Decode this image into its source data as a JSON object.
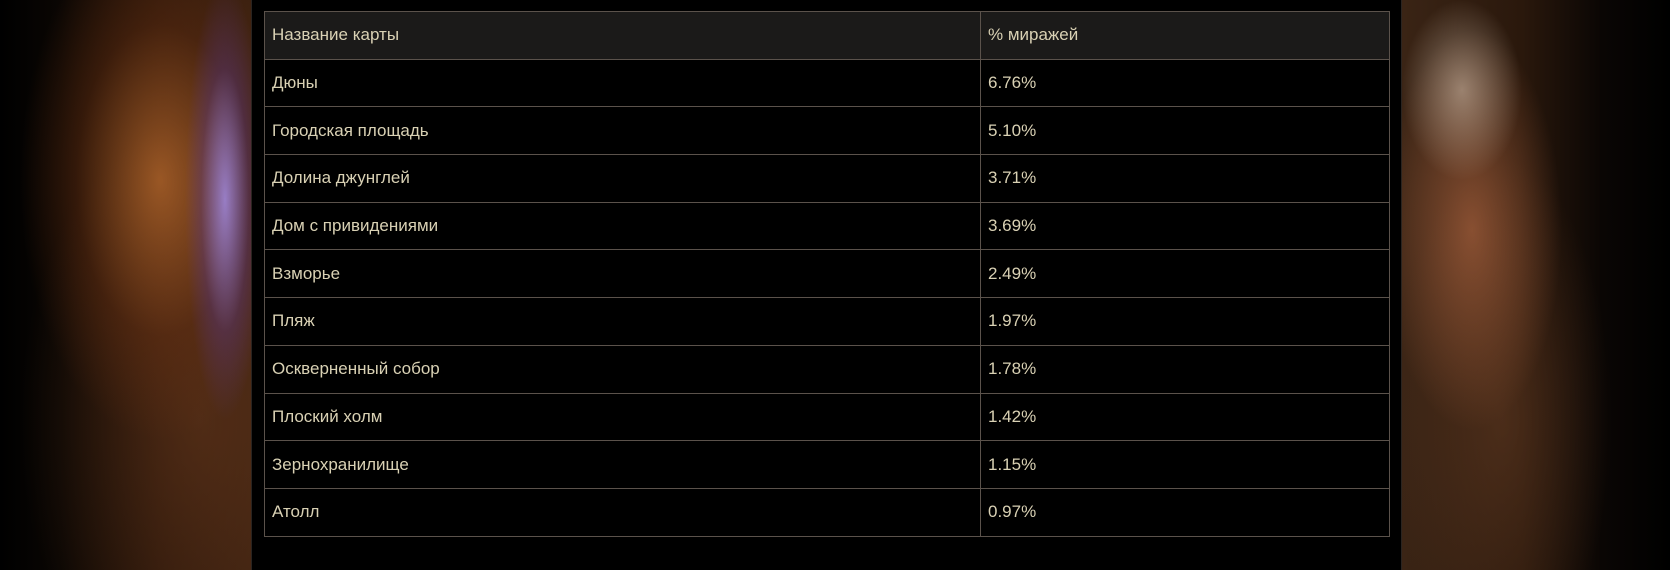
{
  "table": {
    "headers": [
      "Название карты",
      "% миражей"
    ],
    "rows": [
      [
        "Дюны",
        "6.76%"
      ],
      [
        "Городская площадь",
        "5.10%"
      ],
      [
        "Долина джунглей",
        "3.71%"
      ],
      [
        "Дом с привидениями",
        "3.69%"
      ],
      [
        "Взморье",
        "2.49%"
      ],
      [
        "Пляж",
        "1.97%"
      ],
      [
        "Оскверненный собор",
        "1.78%"
      ],
      [
        "Плоский холм",
        "1.42%"
      ],
      [
        "Зернохранилище",
        "1.15%"
      ],
      [
        "Атолл",
        "0.97%"
      ]
    ]
  },
  "colors": {
    "text": "#d9d1b4",
    "border": "#5b524b",
    "header_bg": "#1b1a19",
    "background": "#000000"
  }
}
